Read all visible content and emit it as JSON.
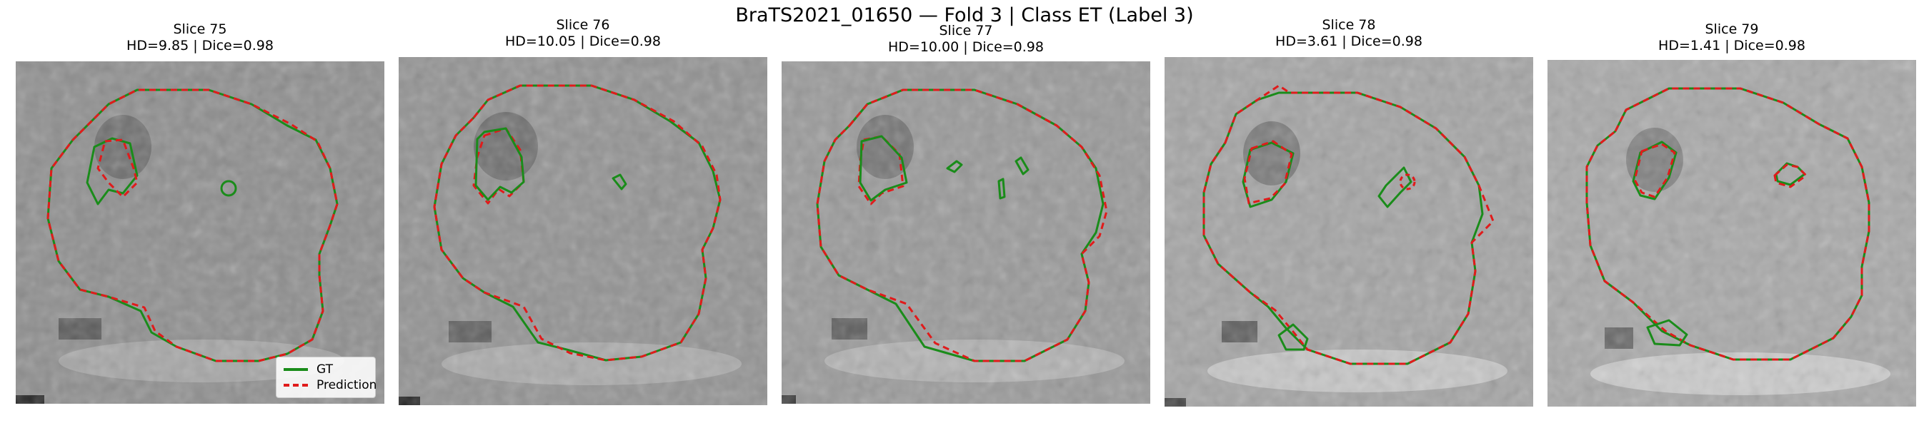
{
  "figure": {
    "title": "BraTS2021_01650 — Fold 3 | Class ET (Label 3)"
  },
  "panels": [
    {
      "slice": "Slice 75",
      "metrics": "HD=9.85 | Dice=0.98"
    },
    {
      "slice": "Slice 76",
      "metrics": "HD=10.05 | Dice=0.98"
    },
    {
      "slice": "Slice 77",
      "metrics": "HD=10.00 | Dice=0.98"
    },
    {
      "slice": "Slice 78",
      "metrics": "HD=3.61 | Dice=0.98"
    },
    {
      "slice": "Slice 79",
      "metrics": "HD=1.41 | Dice=0.98"
    }
  ],
  "legend": {
    "gt_label": "GT",
    "pred_label": "Prediction"
  },
  "colors": {
    "gt": "#1a8c1a",
    "prediction": "#e01b1b"
  }
}
